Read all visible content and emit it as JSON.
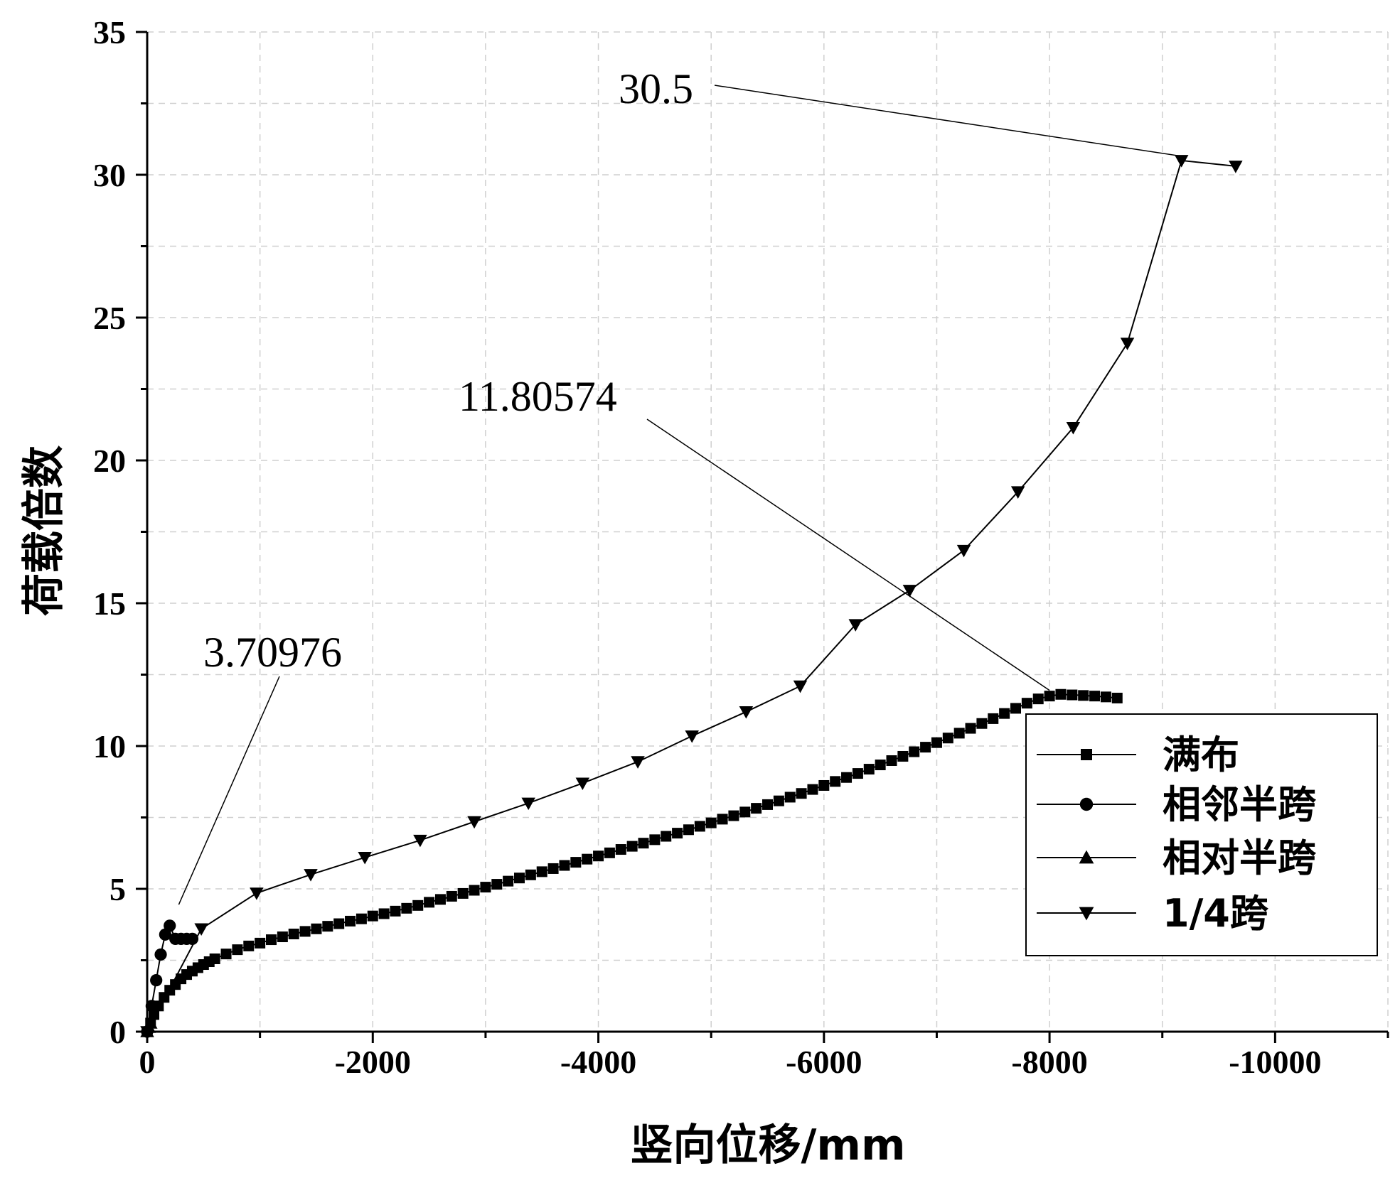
{
  "chart_data": {
    "type": "line",
    "xlabel": "竖向位移/mm",
    "ylabel": "荷载倍数",
    "xlim": [
      0,
      -11000
    ],
    "ylim": [
      0,
      35
    ],
    "x_ticks": [
      0,
      -2000,
      -4000,
      -6000,
      -8000,
      -10000
    ],
    "x_tick_labels": [
      "0",
      "-2000",
      "-4000",
      "-6000",
      "-8000",
      "-10000"
    ],
    "y_ticks": [
      0,
      5,
      10,
      15,
      20,
      25,
      30,
      35
    ],
    "y_tick_labels": [
      "0",
      "5",
      "10",
      "15",
      "20",
      "25",
      "30",
      "35"
    ],
    "grid": true,
    "legend_position": "lower-right",
    "series": [
      {
        "name": "满布",
        "marker": "square",
        "x": [
          0,
          -30,
          -60,
          -100,
          -150,
          -200,
          -250,
          -300,
          -350,
          -400,
          -450,
          -500,
          -550,
          -600,
          -700,
          -800,
          -900,
          -1000,
          -1100,
          -1200,
          -1300,
          -1400,
          -1500,
          -1600,
          -1700,
          -1800,
          -1900,
          -2000,
          -2100,
          -2200,
          -2300,
          -2400,
          -2500,
          -2600,
          -2700,
          -2800,
          -2900,
          -3000,
          -3100,
          -3200,
          -3300,
          -3400,
          -3500,
          -3600,
          -3700,
          -3800,
          -3900,
          -4000,
          -4100,
          -4200,
          -4300,
          -4400,
          -4500,
          -4600,
          -4700,
          -4800,
          -4900,
          -5000,
          -5100,
          -5200,
          -5300,
          -5400,
          -5500,
          -5600,
          -5700,
          -5800,
          -5900,
          -6000,
          -6100,
          -6200,
          -6300,
          -6400,
          -6500,
          -6600,
          -6700,
          -6800,
          -6900,
          -7000,
          -7100,
          -7200,
          -7300,
          -7400,
          -7500,
          -7600,
          -7700,
          -7800,
          -7900,
          -8000,
          -8100,
          -8200,
          -8300,
          -8400,
          -8500,
          -8600
        ],
        "y": [
          0,
          0.3,
          0.6,
          0.9,
          1.2,
          1.45,
          1.65,
          1.85,
          2.0,
          2.12,
          2.24,
          2.35,
          2.45,
          2.55,
          2.72,
          2.87,
          3.0,
          3.1,
          3.22,
          3.32,
          3.42,
          3.51,
          3.6,
          3.69,
          3.78,
          3.87,
          3.95,
          4.05,
          4.13,
          4.22,
          4.32,
          4.42,
          4.53,
          4.63,
          4.74,
          4.84,
          4.95,
          5.06,
          5.16,
          5.27,
          5.38,
          5.49,
          5.6,
          5.71,
          5.82,
          5.93,
          6.04,
          6.15,
          6.26,
          6.38,
          6.49,
          6.6,
          6.72,
          6.84,
          6.95,
          7.07,
          7.19,
          7.31,
          7.44,
          7.56,
          7.69,
          7.82,
          7.95,
          8.08,
          8.21,
          8.34,
          8.48,
          8.62,
          8.76,
          8.9,
          9.04,
          9.19,
          9.34,
          9.49,
          9.64,
          9.8,
          9.96,
          10.12,
          10.28,
          10.45,
          10.62,
          10.79,
          10.96,
          11.14,
          11.32,
          11.5,
          11.65,
          11.75,
          11.81,
          11.79,
          11.77,
          11.75,
          11.72,
          11.68
        ]
      },
      {
        "name": "相邻半跨",
        "marker": "circle",
        "x": [
          0,
          -40,
          -80,
          -120,
          -160,
          -200,
          -250,
          -300,
          -350,
          -400
        ],
        "y": [
          0,
          0.9,
          1.8,
          2.7,
          3.4,
          3.71,
          3.25,
          3.25,
          3.25,
          3.25
        ]
      },
      {
        "name": "相对半跨",
        "marker": "triangle-up",
        "x": [
          0,
          -15,
          -30
        ],
        "y": [
          0,
          0.15,
          0.3
        ]
      },
      {
        "name": "1/4跨",
        "marker": "triangle-down",
        "x": [
          0,
          -480,
          -970,
          -1450,
          -1930,
          -2420,
          -2900,
          -3380,
          -3860,
          -4350,
          -4830,
          -5310,
          -5790,
          -6280,
          -6760,
          -7240,
          -7720,
          -8210,
          -8690,
          -9170,
          -9650
        ],
        "y": [
          0,
          3.6,
          4.85,
          5.5,
          6.1,
          6.7,
          7.35,
          8.0,
          8.7,
          9.45,
          10.35,
          11.2,
          12.1,
          14.25,
          15.45,
          16.85,
          18.9,
          21.15,
          24.1,
          30.5,
          30.3
        ]
      }
    ],
    "annotations": [
      {
        "text": "30.5",
        "x": -9170,
        "y": 30.5
      },
      {
        "text": "11.80574",
        "x": -8000,
        "y": 11.8
      },
      {
        "text": "3.70976",
        "x": -280,
        "y": 4.3
      }
    ]
  }
}
